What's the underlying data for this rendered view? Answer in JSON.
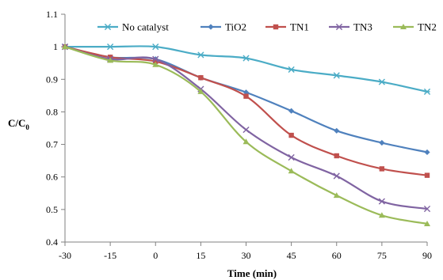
{
  "chart_data": {
    "type": "line",
    "title": "",
    "xlabel": "Time (min)",
    "ylabel": "C/C",
    "ylabel_sub": "0",
    "x": [
      -30,
      -15,
      0,
      15,
      30,
      45,
      60,
      75,
      90
    ],
    "x_tick_labels": [
      "-30",
      "-15",
      "0",
      "15",
      "30",
      "45",
      "60",
      "75",
      "90"
    ],
    "ylim": [
      0.4,
      1.1
    ],
    "y_ticks": [
      0.4,
      0.5,
      0.6,
      0.7,
      0.8,
      0.9,
      1.0,
      1.1
    ],
    "y_tick_labels": [
      "0.4",
      "0.5",
      "0.6",
      "0.7",
      "0.8",
      "0.9",
      "1",
      "1.1"
    ],
    "grid": false,
    "legend": "top",
    "series": [
      {
        "name": "No catalyst",
        "color": "#4bacc6",
        "marker": "asterisk",
        "values": [
          1.0,
          1.0,
          1.0,
          0.975,
          0.965,
          0.93,
          0.912,
          0.892,
          0.862
        ]
      },
      {
        "name": "TiO2",
        "color": "#4f81bd",
        "marker": "diamond",
        "values": [
          1.0,
          0.968,
          0.962,
          0.905,
          0.86,
          0.803,
          0.742,
          0.705,
          0.676
        ]
      },
      {
        "name": "TN1",
        "color": "#c0504d",
        "marker": "square",
        "values": [
          1.0,
          0.968,
          0.955,
          0.905,
          0.848,
          0.728,
          0.665,
          0.625,
          0.605
        ]
      },
      {
        "name": "TN3",
        "color": "#8064a2",
        "marker": "x",
        "values": [
          1.0,
          0.962,
          0.962,
          0.87,
          0.745,
          0.66,
          0.603,
          0.525,
          0.502
        ]
      },
      {
        "name": "TN2",
        "color": "#9bbb59",
        "marker": "triangle",
        "values": [
          1.0,
          0.958,
          0.945,
          0.862,
          0.708,
          0.618,
          0.543,
          0.482,
          0.456
        ]
      }
    ]
  }
}
